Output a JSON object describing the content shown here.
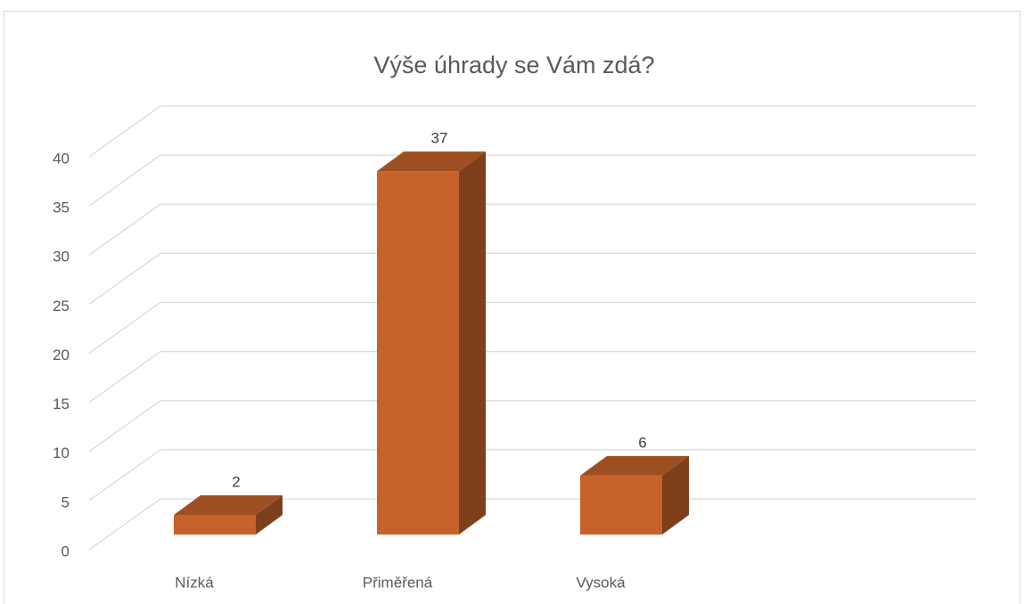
{
  "chart_data": {
    "type": "bar3d",
    "title": "Výše úhrady se Vám zdá?",
    "categories": [
      "Nízká",
      "Přiměřená",
      "Vysoká"
    ],
    "values": [
      2,
      37,
      6
    ],
    "color": "#c5632a",
    "ylim": [
      0,
      40
    ],
    "yticks": [
      0,
      5,
      10,
      15,
      20,
      25,
      30,
      35,
      40
    ],
    "grid": true
  }
}
